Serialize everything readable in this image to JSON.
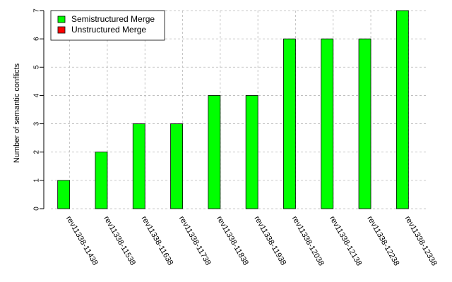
{
  "chart_data": {
    "type": "bar",
    "categories": [
      "rev11338-11438",
      "rev11338-11538",
      "rev11338-11638",
      "rev11338-11738",
      "rev11338-11838",
      "rev11338-11938",
      "rev11338-12038",
      "rev11338-12138",
      "rev11338-12238",
      "rev11338-12338"
    ],
    "series": [
      {
        "name": "Semistructured Merge",
        "color": "#00ff00",
        "values": [
          1,
          2,
          3,
          3,
          4,
          4,
          6,
          6,
          6,
          7
        ]
      },
      {
        "name": "Unstructured Merge",
        "color": "#ff0000",
        "values": [
          0,
          0,
          0,
          0,
          0,
          0,
          0,
          0,
          0,
          0
        ]
      }
    ],
    "title": "",
    "xlabel": "",
    "ylabel": "Number of semantic conflicts",
    "ylim": [
      0,
      7
    ],
    "yticks": [
      0,
      1,
      2,
      3,
      4,
      5,
      6,
      7
    ],
    "grid": true,
    "legend_position": "top-left"
  }
}
